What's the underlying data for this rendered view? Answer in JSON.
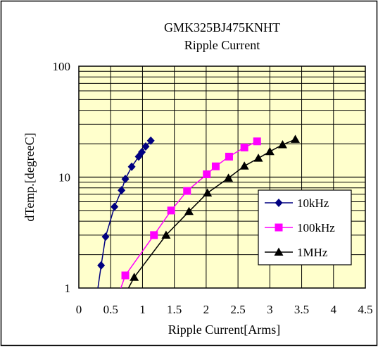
{
  "chart_data": {
    "type": "line",
    "title": "GMK325BJ475KNHT",
    "subtitle": "Ripple Current",
    "xlabel": "Ripple Current[Arms]",
    "ylabel": "dTemp.[degreeC]",
    "xlim": [
      0,
      4.5
    ],
    "ylim": [
      1,
      100
    ],
    "yscale": "log",
    "x_ticks": [
      0,
      0.5,
      1,
      1.5,
      2,
      2.5,
      3,
      3.5,
      4,
      4.5
    ],
    "x_tick_labels": [
      "0",
      "0.5",
      "1",
      "1.5",
      "2",
      "2.5",
      "3",
      "3.5",
      "4",
      "4.5"
    ],
    "y_tick_labels": [
      "1",
      "10",
      "100"
    ],
    "grid": true,
    "legend_position": "center-right",
    "plot_background": "#ffffcc",
    "series": [
      {
        "name": "10kHz",
        "color": "#000080",
        "marker": "diamond",
        "points": [
          [
            0.3,
            1.0
          ],
          [
            0.35,
            1.6
          ],
          [
            0.42,
            2.9
          ],
          [
            0.56,
            5.4
          ],
          [
            0.67,
            7.6
          ],
          [
            0.73,
            9.6
          ],
          [
            0.83,
            12.4
          ],
          [
            0.94,
            15.3
          ],
          [
            0.99,
            16.8
          ],
          [
            1.05,
            18.9
          ],
          [
            1.13,
            21.3
          ]
        ]
      },
      {
        "name": "100kHz",
        "color": "#ff00ff",
        "marker": "square",
        "points": [
          [
            0.66,
            1.0
          ],
          [
            0.73,
            1.3
          ],
          [
            1.18,
            3.0
          ],
          [
            1.45,
            5.0
          ],
          [
            1.7,
            7.5
          ],
          [
            2.01,
            10.6
          ],
          [
            2.15,
            12.5
          ],
          [
            2.36,
            15.3
          ],
          [
            2.6,
            18.5
          ],
          [
            2.8,
            21.0
          ]
        ]
      },
      {
        "name": "1MHz",
        "color": "#000000",
        "marker": "triangle",
        "points": [
          [
            0.78,
            1.0
          ],
          [
            0.87,
            1.25
          ],
          [
            1.37,
            3.0
          ],
          [
            1.73,
            4.9
          ],
          [
            2.02,
            7.2
          ],
          [
            2.35,
            9.8
          ],
          [
            2.6,
            12.6
          ],
          [
            2.82,
            14.8
          ],
          [
            3.0,
            17.0
          ],
          [
            3.2,
            19.6
          ],
          [
            3.4,
            21.9
          ]
        ]
      }
    ]
  }
}
